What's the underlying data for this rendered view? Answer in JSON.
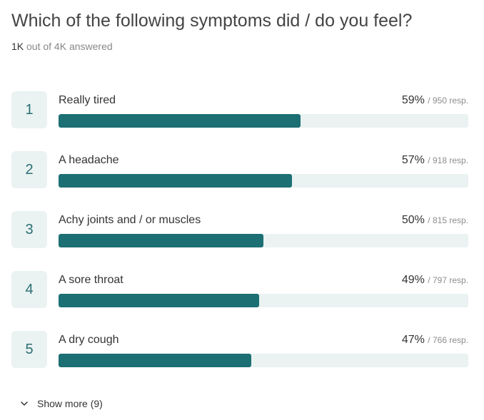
{
  "question": {
    "title": "Which of the following symptoms did / do you feel?",
    "answered_count": "1K",
    "answered_suffix": "out of 4K answered"
  },
  "results": [
    {
      "rank": "1",
      "label": "Really tired",
      "percent": "59%",
      "responses": "/ 950 resp.",
      "fill_fraction": 0.59
    },
    {
      "rank": "2",
      "label": "A headache",
      "percent": "57%",
      "responses": "/ 918 resp.",
      "fill_fraction": 0.57
    },
    {
      "rank": "3",
      "label": "Achy joints and / or muscles",
      "percent": "50%",
      "responses": "/ 815 resp.",
      "fill_fraction": 0.5
    },
    {
      "rank": "4",
      "label": "A sore throat",
      "percent": "49%",
      "responses": "/ 797 resp.",
      "fill_fraction": 0.49
    },
    {
      "rank": "5",
      "label": "A dry cough",
      "percent": "47%",
      "responses": "/ 766 resp.",
      "fill_fraction": 0.47
    }
  ],
  "show_more": {
    "label": "Show more (9)",
    "icon": "chevron-down-icon"
  },
  "colors": {
    "accent": "#1c6f73",
    "track": "#eaf2f2"
  }
}
